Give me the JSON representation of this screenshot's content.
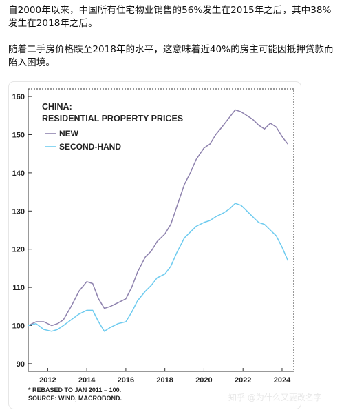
{
  "article": {
    "paragraph1": "自2000年以来，中国所有住宅物业销售的56%发生在2015年之后，其中38%发生在2018年之后。",
    "paragraph2": "随着二手房价格跌至2018年的水平，这意味着近40%的房主可能因抵押贷款而陷入困境。"
  },
  "watermark": "知乎 @为什么又要改名字",
  "chart_data": {
    "type": "line",
    "title": "CHINA:",
    "subtitle": "RESIDENTIAL PROPERTY PRICES",
    "xlabel": "",
    "ylabel": "",
    "xlim": [
      2011.0,
      2024.6
    ],
    "ylim": [
      88,
      162
    ],
    "x_ticks": [
      "2012",
      "2014",
      "2016",
      "2018",
      "2020",
      "2022",
      "2024"
    ],
    "y_ticks": [
      "90",
      "100",
      "110",
      "120",
      "130",
      "140",
      "150",
      "160"
    ],
    "grid": false,
    "legend": "top-left",
    "footnote": "* REBASED TO JAN 2011 = 100.",
    "source": "SOURCE: WIND, MACROBOND.",
    "series": [
      {
        "name": "NEW",
        "color": "#8e82ae",
        "x": [
          2011.0,
          2011.4,
          2011.8,
          2012.2,
          2012.5,
          2012.8,
          2013.2,
          2013.6,
          2014.0,
          2014.3,
          2014.6,
          2014.9,
          2015.2,
          2015.6,
          2016.0,
          2016.3,
          2016.6,
          2017.0,
          2017.3,
          2017.6,
          2018.0,
          2018.3,
          2018.6,
          2019.0,
          2019.3,
          2019.6,
          2020.0,
          2020.3,
          2020.6,
          2021.0,
          2021.3,
          2021.6,
          2021.9,
          2022.2,
          2022.5,
          2022.8,
          2023.1,
          2023.4,
          2023.7,
          2024.0,
          2024.3
        ],
        "values": [
          100,
          101,
          101,
          100,
          100.5,
          101.5,
          105,
          109,
          111.5,
          111,
          107,
          104.5,
          105,
          106,
          107,
          110,
          114,
          118,
          119.5,
          122,
          124,
          126.5,
          131,
          137,
          140,
          143.5,
          146.5,
          147.5,
          150,
          152.5,
          154.5,
          156.5,
          156,
          155,
          154,
          152.5,
          151.5,
          153,
          152,
          149.5,
          147.5
        ]
      },
      {
        "name": "SECOND-HAND",
        "color": "#6ecbef",
        "x": [
          2011.0,
          2011.4,
          2011.8,
          2012.2,
          2012.5,
          2012.8,
          2013.2,
          2013.6,
          2014.0,
          2014.3,
          2014.6,
          2014.9,
          2015.2,
          2015.6,
          2016.0,
          2016.3,
          2016.6,
          2017.0,
          2017.3,
          2017.6,
          2018.0,
          2018.3,
          2018.6,
          2019.0,
          2019.3,
          2019.6,
          2020.0,
          2020.3,
          2020.6,
          2021.0,
          2021.3,
          2021.6,
          2021.9,
          2022.2,
          2022.5,
          2022.8,
          2023.1,
          2023.4,
          2023.7,
          2024.0,
          2024.3
        ],
        "values": [
          100,
          100.5,
          99,
          98.5,
          99,
          100,
          101.5,
          103,
          104,
          104,
          101,
          98.5,
          99.5,
          100.5,
          101,
          103.5,
          106.5,
          109,
          110.5,
          112.5,
          113.5,
          115.5,
          119,
          123,
          124.5,
          126,
          127,
          127.5,
          128.5,
          129.5,
          130.5,
          132,
          131.5,
          130,
          128.5,
          127,
          126.5,
          125,
          123.5,
          120.5,
          117
        ]
      }
    ]
  }
}
